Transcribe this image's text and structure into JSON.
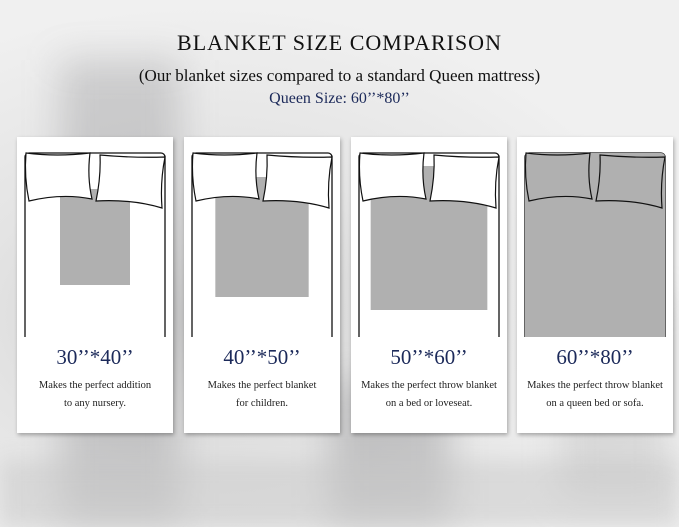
{
  "title": "BLANKET SIZE COMPARISON",
  "subtitle": "(Our blanket sizes compared to a standard Queen mattress)",
  "queen_size": "Queen Size: 60’’*80’’",
  "colors": {
    "navy": "#1c2a5a",
    "blanket": "#b0b0b0"
  },
  "cards": [
    {
      "size": "30’’*40’’",
      "line1": "Makes the perfect addition",
      "line2": "to any nursery.",
      "blanket_width_in": 30,
      "blanket_length_in": 40
    },
    {
      "size": "40’’*50’’",
      "line1": "Makes the perfect blanket",
      "line2": "for children.",
      "blanket_width_in": 40,
      "blanket_length_in": 50
    },
    {
      "size": "50’’*60’’",
      "line1": "Makes the perfect throw blanket",
      "line2": "on a bed or loveseat.",
      "blanket_width_in": 50,
      "blanket_length_in": 60
    },
    {
      "size": "60’’*80’’",
      "line1": "Makes the perfect throw blanket",
      "line2": "on a queen bed or sofa.",
      "blanket_width_in": 60,
      "blanket_length_in": 80
    }
  ]
}
